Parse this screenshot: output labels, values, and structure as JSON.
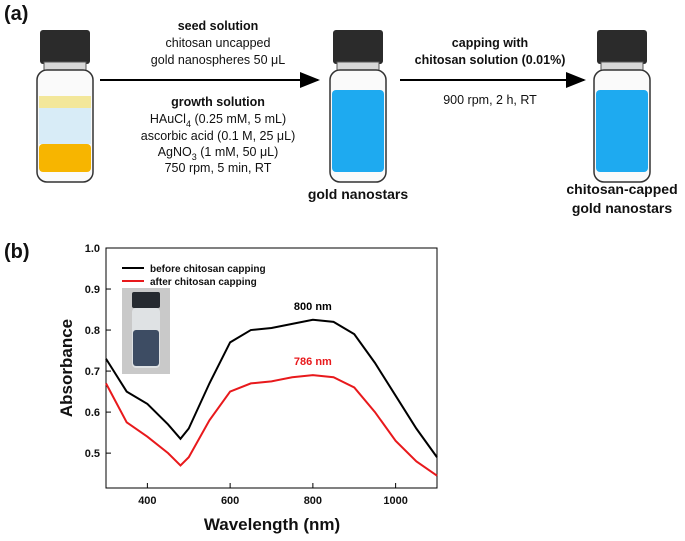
{
  "diagram": {
    "panel_label": "(a)",
    "step1": {
      "above": [
        "seed solution",
        "chitosan uncapped",
        "gold nanospheres 50 μL"
      ],
      "below_title": "growth solution",
      "hauci": [
        "HAuCl",
        "4",
        " (0.25 mM, 5 mL)"
      ],
      "ascorbic": "ascorbic acid (0.1 M, 25 μL)",
      "agno": [
        "AgNO",
        "3",
        " (1 mM, 50 μL)"
      ],
      "conditions": "750 rpm, 5 min, RT"
    },
    "product1": "gold nanostars",
    "step2": {
      "above": [
        "capping with",
        "chitosan solution (0.01%)"
      ],
      "below": "900 rpm, 2 h, RT"
    },
    "product2": [
      "chitosan-capped",
      "gold nanostars"
    ]
  },
  "chart_data": {
    "type": "line",
    "panel_label": "(b)",
    "x_label": "Wavelength (nm)",
    "y_label": "Absorbance",
    "x": [
      300,
      350,
      400,
      450,
      480,
      500,
      550,
      600,
      650,
      700,
      750,
      800,
      850,
      900,
      950,
      1000,
      1050,
      1100
    ],
    "series": [
      {
        "name": "before chitosan capping",
        "color": "#000000",
        "values": [
          0.73,
          0.65,
          0.62,
          0.57,
          0.535,
          0.56,
          0.67,
          0.77,
          0.8,
          0.805,
          0.815,
          0.825,
          0.82,
          0.79,
          0.72,
          0.64,
          0.56,
          0.49
        ]
      },
      {
        "name": "after chitosan capping",
        "color": "#e8191c",
        "values": [
          0.67,
          0.575,
          0.54,
          0.5,
          0.47,
          0.49,
          0.58,
          0.65,
          0.67,
          0.675,
          0.685,
          0.69,
          0.685,
          0.66,
          0.6,
          0.53,
          0.48,
          0.445
        ]
      }
    ],
    "annotations": [
      "800 nm",
      "786 nm"
    ],
    "xlim": [
      300,
      1100
    ],
    "xticks": [
      400,
      600,
      800,
      1000
    ],
    "ylim": [
      0.415,
      1.0
    ],
    "yticks": [
      0.5,
      0.6,
      0.7,
      0.8,
      0.9,
      {
        "value": 1,
        "label": "1.0"
      }
    ],
    "legend": "upper-left"
  }
}
